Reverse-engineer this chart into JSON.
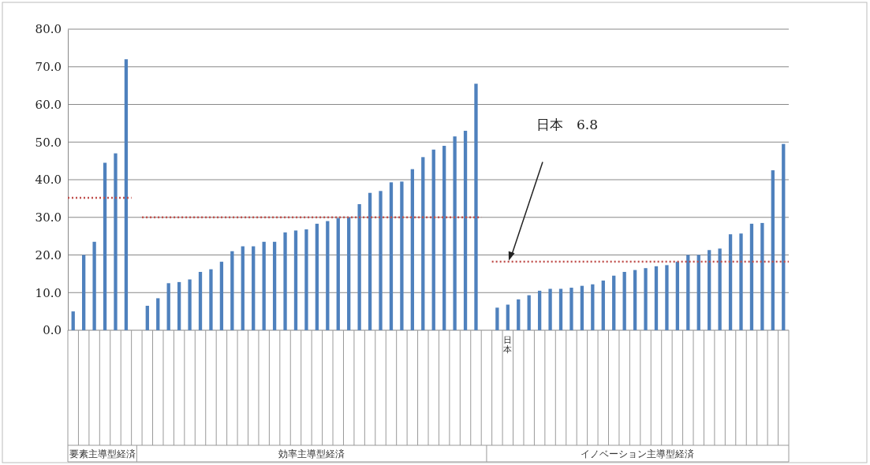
{
  "chart_data": {
    "type": "bar",
    "categories": [
      null,
      null,
      null,
      null,
      null,
      null,
      null,
      null,
      null,
      null,
      null,
      null,
      null,
      null,
      null,
      null,
      null,
      null,
      null,
      null,
      null,
      null,
      null,
      null,
      null,
      null,
      null,
      null,
      null,
      null,
      null,
      null,
      null,
      null,
      null,
      null,
      null,
      null,
      null,
      null,
      null,
      "日本",
      null,
      null,
      null,
      null,
      null,
      null,
      null,
      null,
      null,
      null,
      null,
      null,
      null,
      null,
      null,
      null,
      null,
      null,
      null,
      null,
      null,
      null,
      null,
      null,
      null,
      null
    ],
    "values": [
      5.0,
      20.0,
      23.5,
      44.5,
      47.0,
      72.0,
      null,
      6.5,
      8.5,
      12.5,
      12.8,
      13.5,
      15.5,
      16.2,
      18.2,
      21.0,
      22.3,
      22.3,
      23.5,
      23.5,
      26.0,
      26.5,
      26.8,
      28.3,
      29.0,
      29.8,
      30.0,
      33.5,
      36.5,
      37.0,
      39.3,
      39.5,
      42.8,
      46.0,
      48.0,
      49.0,
      51.5,
      53.0,
      65.5,
      null,
      6.0,
      6.8,
      8.2,
      9.3,
      10.5,
      11.0,
      11.0,
      11.3,
      11.8,
      12.2,
      13.2,
      14.5,
      15.5,
      16.0,
      16.5,
      17.0,
      17.3,
      18.2,
      20.0,
      20.0,
      21.3,
      21.7,
      25.5,
      25.7,
      28.3,
      28.5,
      42.5,
      49.5
    ],
    "color": "#4f81bd",
    "ylim": [
      0,
      80
    ],
    "yticks": [
      {
        "value": 0,
        "label": "0.0"
      },
      {
        "value": 10,
        "label": "10.0"
      },
      {
        "value": 20,
        "label": "20.0"
      },
      {
        "value": 30,
        "label": "30.0"
      },
      {
        "value": 40,
        "label": "40.0"
      },
      {
        "value": 50,
        "label": "50.0"
      },
      {
        "value": 60,
        "label": "60.0"
      },
      {
        "value": 70,
        "label": "70.0"
      },
      {
        "value": 80,
        "label": "80.0"
      }
    ],
    "grid": "y",
    "ref_lines": [
      {
        "axis": "y",
        "value": 35.2,
        "color": "#c0504d",
        "line_style": "dotted"
      },
      {
        "axis": "y",
        "value": 30.0,
        "color": "#c0504d",
        "line_style": "dotted"
      },
      {
        "axis": "y",
        "value": 18.2,
        "color": "#c0504d",
        "line_style": "dotted"
      }
    ],
    "annotations": [
      "要素主導型経済",
      "効率主導型経済",
      "イノベーション主導型経済",
      "日本　6.8"
    ]
  }
}
